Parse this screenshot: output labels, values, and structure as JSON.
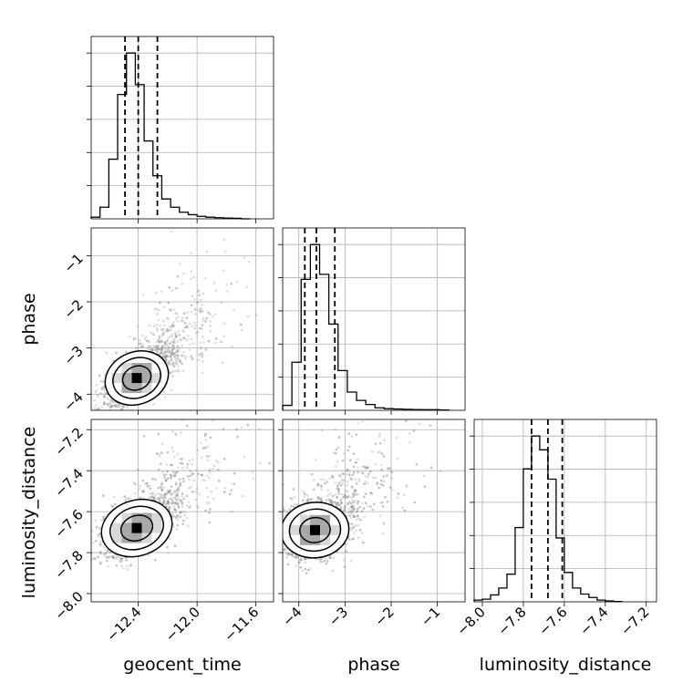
{
  "chart_data": {
    "type": "corner",
    "parameters": [
      {
        "name": "geocent_time",
        "label": "geocent_time",
        "range": [
          -12.72,
          -11.48
        ],
        "ticks": [
          -12.4,
          -12.0,
          -11.6
        ],
        "tick_labels": [
          "−12.4",
          "−12.0",
          "−11.6"
        ],
        "quantiles": [
          -12.49,
          -12.4,
          -12.27
        ]
      },
      {
        "name": "phase",
        "label": "phase",
        "range": [
          -4.35,
          -0.4
        ],
        "ticks": [
          -4,
          -3,
          -2,
          -1
        ],
        "tick_labels": [
          "−4",
          "−3",
          "−2",
          "−1"
        ],
        "quantiles": [
          -3.87,
          -3.62,
          -3.22
        ]
      },
      {
        "name": "luminosity_distance",
        "label": "luminosity_distance",
        "range": [
          -8.04,
          -7.15
        ],
        "ticks": [
          -8.0,
          -7.8,
          -7.6,
          -7.4,
          -7.2
        ],
        "tick_labels": [
          "−8.0",
          "−7.8",
          "−7.6",
          "−7.4",
          "−7.2"
        ],
        "quantiles": [
          -7.76,
          -7.68,
          -7.61
        ]
      }
    ],
    "histograms": [
      {
        "parameter": "geocent_time",
        "bin_edges": [
          -12.72,
          -12.66,
          -12.6,
          -12.54,
          -12.48,
          -12.42,
          -12.36,
          -12.3,
          -12.24,
          -12.18,
          -12.12,
          -12.06,
          -12.0,
          -11.94,
          -11.88,
          -11.82,
          -11.76,
          -11.7,
          -11.64
        ],
        "counts": [
          0.01,
          0.07,
          0.36,
          0.75,
          1.0,
          0.81,
          0.47,
          0.26,
          0.12,
          0.07,
          0.04,
          0.025,
          0.015,
          0.01,
          0.007,
          0.005,
          0.003,
          0.0
        ]
      },
      {
        "parameter": "phase",
        "bin_edges": [
          -4.35,
          -4.15,
          -3.95,
          -3.75,
          -3.55,
          -3.35,
          -3.15,
          -2.95,
          -2.75,
          -2.55,
          -2.35,
          -2.15,
          -1.95,
          -1.75,
          -1.55,
          -1.35,
          -1.15,
          -0.95,
          -0.75
        ],
        "counts": [
          0.03,
          0.29,
          0.79,
          1.0,
          0.82,
          0.52,
          0.24,
          0.11,
          0.06,
          0.035,
          0.015,
          0.01,
          0.008,
          0.006,
          0.005,
          0.004,
          0.004,
          0.002
        ]
      },
      {
        "parameter": "luminosity_distance",
        "bin_edges": [
          -8.04,
          -8.0,
          -7.96,
          -7.92,
          -7.88,
          -7.84,
          -7.8,
          -7.76,
          -7.72,
          -7.68,
          -7.64,
          -7.6,
          -7.56,
          -7.52,
          -7.48,
          -7.44,
          -7.4,
          -7.36,
          -7.32
        ],
        "counts": [
          0.01,
          0.015,
          0.04,
          0.08,
          0.16,
          0.43,
          0.77,
          0.96,
          0.88,
          0.71,
          0.37,
          0.17,
          0.08,
          0.045,
          0.025,
          0.01,
          0.005,
          0.002
        ]
      }
    ],
    "pairs": [
      {
        "x": "geocent_time",
        "y": "phase",
        "mode": [
          -12.41,
          -3.65
        ],
        "spread": [
          0.09,
          0.25
        ],
        "correlation": 0.55,
        "density_levels": [
          0.39,
          0.86,
          0.99
        ]
      },
      {
        "x": "geocent_time",
        "y": "luminosity_distance",
        "mode": [
          -12.41,
          -7.68
        ],
        "spread": [
          0.1,
          0.06
        ],
        "correlation": 0.45,
        "density_levels": [
          0.39,
          0.86,
          0.99
        ]
      },
      {
        "x": "phase",
        "y": "luminosity_distance",
        "mode": [
          -3.65,
          -7.69
        ],
        "spread": [
          0.3,
          0.06
        ],
        "correlation": 0.15,
        "density_levels": [
          0.39,
          0.86,
          0.99
        ]
      }
    ],
    "grid": true,
    "colors": {
      "line": "#000000",
      "grid": "#b0b0b0",
      "points": "#808080",
      "contour_fill": "#ffffff"
    }
  }
}
